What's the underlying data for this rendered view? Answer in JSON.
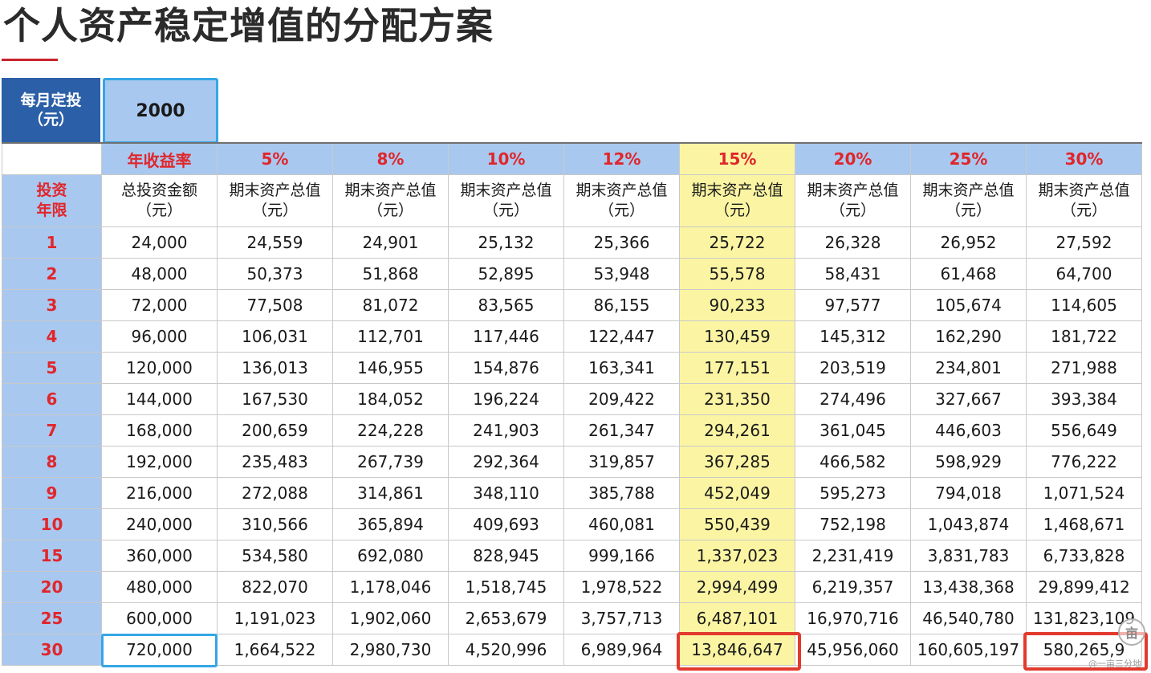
{
  "title": "个人资产稳定增值的分配方案",
  "monthly": {
    "label_line1": "每月定投",
    "label_line2": "（元）",
    "value": "2000"
  },
  "rate_header": {
    "label": "年收益率",
    "rates": [
      "5%",
      "8%",
      "10%",
      "12%",
      "15%",
      "20%",
      "25%",
      "30%"
    ]
  },
  "column_header": {
    "year_line1": "投资",
    "year_line2": "年限",
    "total_line1": "总投资金额",
    "total_line2": "（元）",
    "value_line1": "期末资产总值",
    "value_line2": "（元）"
  },
  "rows": [
    {
      "year": "1",
      "total": "24,000",
      "values": [
        "24,559",
        "24,901",
        "25,132",
        "25,366",
        "25,722",
        "26,328",
        "26,952",
        "27,592"
      ]
    },
    {
      "year": "2",
      "total": "48,000",
      "values": [
        "50,373",
        "51,868",
        "52,895",
        "53,948",
        "55,578",
        "58,431",
        "61,468",
        "64,700"
      ]
    },
    {
      "year": "3",
      "total": "72,000",
      "values": [
        "77,508",
        "81,072",
        "83,565",
        "86,155",
        "90,233",
        "97,577",
        "105,674",
        "114,605"
      ]
    },
    {
      "year": "4",
      "total": "96,000",
      "values": [
        "106,031",
        "112,701",
        "117,446",
        "122,447",
        "130,459",
        "145,312",
        "162,290",
        "181,722"
      ]
    },
    {
      "year": "5",
      "total": "120,000",
      "values": [
        "136,013",
        "146,955",
        "154,876",
        "163,341",
        "177,151",
        "203,519",
        "234,801",
        "271,988"
      ]
    },
    {
      "year": "6",
      "total": "144,000",
      "values": [
        "167,530",
        "184,052",
        "196,224",
        "209,422",
        "231,350",
        "274,496",
        "327,667",
        "393,384"
      ]
    },
    {
      "year": "7",
      "total": "168,000",
      "values": [
        "200,659",
        "224,228",
        "241,903",
        "261,347",
        "294,261",
        "361,045",
        "446,603",
        "556,649"
      ]
    },
    {
      "year": "8",
      "total": "192,000",
      "values": [
        "235,483",
        "267,739",
        "292,364",
        "319,857",
        "367,285",
        "466,582",
        "598,929",
        "776,222"
      ]
    },
    {
      "year": "9",
      "total": "216,000",
      "values": [
        "272,088",
        "314,861",
        "348,110",
        "385,788",
        "452,049",
        "595,273",
        "794,018",
        "1,071,524"
      ]
    },
    {
      "year": "10",
      "total": "240,000",
      "values": [
        "310,566",
        "365,894",
        "409,693",
        "460,081",
        "550,439",
        "752,198",
        "1,043,874",
        "1,468,671"
      ]
    },
    {
      "year": "15",
      "total": "360,000",
      "values": [
        "534,580",
        "692,080",
        "828,945",
        "999,166",
        "1,337,023",
        "2,231,419",
        "3,831,783",
        "6,733,828"
      ]
    },
    {
      "year": "20",
      "total": "480,000",
      "values": [
        "822,070",
        "1,178,046",
        "1,518,745",
        "1,978,522",
        "2,994,499",
        "6,219,357",
        "13,438,368",
        "29,899,412"
      ]
    },
    {
      "year": "25",
      "total": "600,000",
      "values": [
        "1,191,023",
        "1,902,060",
        "2,653,679",
        "3,757,713",
        "6,487,101",
        "16,970,716",
        "46,540,780",
        "131,823,109"
      ]
    },
    {
      "year": "30",
      "total": "720,000",
      "values": [
        "1,664,522",
        "2,980,730",
        "4,520,996",
        "6,989,964",
        "13,846,647",
        "45,956,060",
        "160,605,197",
        "580,265,9"
      ]
    }
  ],
  "highlight": {
    "column_index": 4,
    "column_color": "#fbf5a3",
    "box_blue": "#34a6e6",
    "box_red": "#e23b2e"
  },
  "colors": {
    "header_blue": "#2b5fa8",
    "light_blue": "#a9c8ef",
    "accent_red": "#e0262b"
  },
  "watermark": {
    "text": "@一亩三分地",
    "logo_glyph": "亩"
  }
}
